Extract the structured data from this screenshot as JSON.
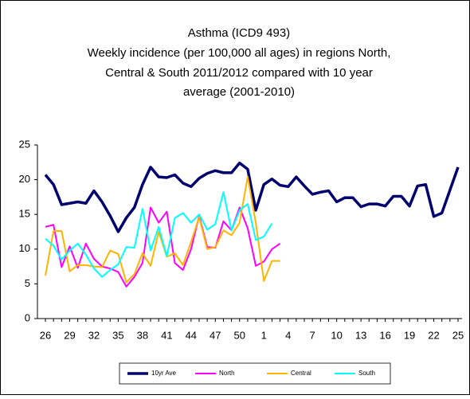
{
  "chart_data": {
    "type": "line",
    "title": "Asthma (ICD9 493)",
    "subtitle": [
      "Weekly incidence (per 100,000 all ages) in regions North,",
      "Central & South 2011/2012 compared with 10 year",
      "average (2001-2010)"
    ],
    "categories": [
      "26",
      null,
      null,
      "29",
      null,
      null,
      "32",
      null,
      null,
      "35",
      null,
      null,
      "38",
      null,
      null,
      "41",
      null,
      null,
      "44",
      null,
      null,
      "47",
      null,
      null,
      "50",
      null,
      null,
      "1",
      null,
      null,
      "4",
      null,
      null,
      "7",
      null,
      null,
      "10",
      null,
      null,
      "13",
      null,
      null,
      "16",
      null,
      null,
      "19",
      null,
      null,
      "22",
      null,
      null,
      "25"
    ],
    "series": [
      {
        "name": "10yr Ave",
        "color": "#00006e",
        "width": 3.5,
        "values": [
          20.7,
          19.3,
          16.4,
          16.6,
          16.8,
          16.6,
          18.4,
          16.8,
          14.8,
          12.5,
          14.5,
          16,
          19.3,
          21.8,
          20.4,
          20.3,
          20.7,
          19.5,
          19,
          20.2,
          20.9,
          21.3,
          21,
          21,
          22.4,
          21.5,
          15.6,
          19.3,
          20.1,
          19.2,
          19,
          20.4,
          19.1,
          17.9,
          18.2,
          18.4,
          16.8,
          17.4,
          17.4,
          16.1,
          16.5,
          16.5,
          16.2,
          17.6,
          17.6,
          16.2,
          19.1,
          19.3,
          14.7,
          15.2,
          18.5,
          21.8
        ]
      },
      {
        "name": "North",
        "color": "#ff00ff",
        "width": 2,
        "values": [
          13.2,
          13.5,
          7.4,
          10.4,
          7.3,
          10.8,
          8.6,
          7.5,
          7.2,
          6.7,
          4.6,
          6,
          8,
          16,
          13.8,
          15.4,
          8,
          7,
          10,
          14.8,
          10.3,
          10.2,
          14,
          12.7,
          16,
          13,
          7.6,
          8.2,
          10,
          10.8,
          null,
          null,
          null,
          null,
          null,
          null,
          null,
          null,
          null,
          null,
          null,
          null,
          null,
          null,
          null,
          null,
          null,
          null,
          null,
          null,
          null,
          null
        ]
      },
      {
        "name": "Central",
        "color": "#ffb400",
        "width": 2,
        "values": [
          6.2,
          12.6,
          12.6,
          6.8,
          7.7,
          7.7,
          7.5,
          7.4,
          9.8,
          9.3,
          5.2,
          6.4,
          9.4,
          7.6,
          12.5,
          8.9,
          9.4,
          7.7,
          11,
          14.6,
          10,
          10.3,
          12.7,
          12,
          13.8,
          20.4,
          13.8,
          5.4,
          8.3,
          8.3,
          null,
          null,
          null,
          null,
          null,
          null,
          null,
          null,
          null,
          null,
          null,
          null,
          null,
          null,
          null,
          null,
          null,
          null,
          null,
          null,
          null,
          null
        ]
      },
      {
        "name": "South",
        "color": "#00ffff",
        "width": 2,
        "values": [
          11.5,
          10.5,
          8.5,
          9.8,
          10.8,
          9.2,
          7.2,
          6,
          7,
          7.8,
          10.3,
          10.2,
          15.8,
          9.8,
          13.2,
          9,
          14.5,
          15.2,
          13.8,
          15,
          12.8,
          13.6,
          18.2,
          12.7,
          15.6,
          16.5,
          11.3,
          11.8,
          13.7,
          null,
          null,
          null,
          null,
          null,
          null,
          null,
          null,
          null,
          null,
          null,
          null,
          null,
          null,
          null,
          null,
          null,
          null,
          null,
          null,
          null,
          null,
          null
        ]
      }
    ],
    "ylim": [
      0,
      25
    ],
    "yticks": [
      0,
      5,
      10,
      15,
      20,
      25
    ],
    "legend": "bottom"
  }
}
